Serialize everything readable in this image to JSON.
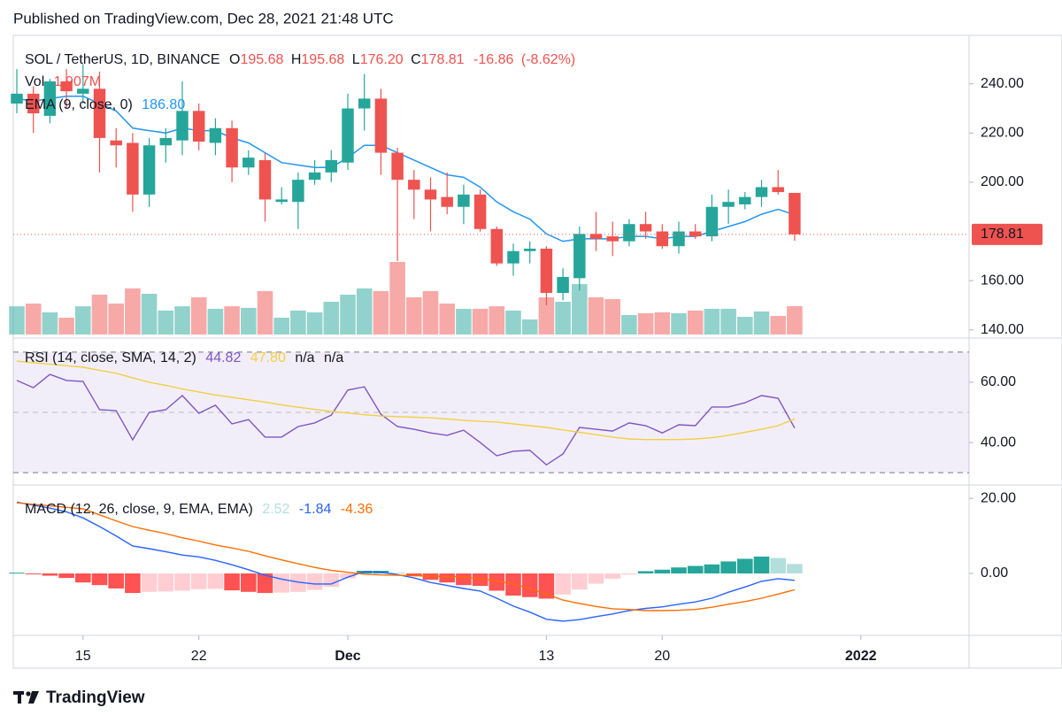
{
  "header": {
    "published": "Published on TradingView.com, Dec 28, 2021 21:48 UTC"
  },
  "footer": {
    "brand": "TradingView"
  },
  "chart_data": [
    {
      "type": "candlestick",
      "title": "SOL / TetherUS, 1D, BINANCE",
      "legend": {
        "open_prefix": "O",
        "high_prefix": "H",
        "low_prefix": "L",
        "close_prefix": "C",
        "low_label": "176.20",
        "change": -16.86,
        "change_pct": {
          "value": -8.62,
          "label": "(-8.62%)"
        }
      },
      "categories": [
        null,
        null,
        null,
        null,
        "15",
        null,
        null,
        null,
        null,
        null,
        null,
        "22",
        null,
        null,
        null,
        null,
        null,
        null,
        null,
        null,
        "Dec",
        null,
        null,
        null,
        null,
        null,
        null,
        null,
        null,
        null,
        null,
        null,
        "13",
        null,
        null,
        null,
        null,
        null,
        null,
        "20",
        null,
        null,
        null,
        null,
        null,
        null,
        null,
        null,
        null,
        null,
        null,
        "2022"
      ],
      "open": [
        232,
        236,
        227,
        241,
        236,
        238,
        217,
        216,
        195,
        215,
        217,
        229,
        216,
        222,
        206,
        209,
        192,
        192,
        201,
        204,
        208,
        230,
        234,
        212,
        201,
        197,
        194,
        190,
        195,
        181,
        167,
        172,
        173,
        155,
        161,
        179,
        178,
        176,
        183,
        180,
        174,
        180,
        178,
        190,
        191,
        194,
        198,
        195.68,
        null,
        null,
        null,
        null
      ],
      "high": [
        246,
        239,
        242,
        246,
        248,
        245,
        222,
        220,
        218,
        222,
        241,
        232,
        226,
        225,
        213,
        212,
        198,
        204,
        209,
        213,
        236,
        244,
        238,
        214,
        205,
        202,
        204,
        199,
        197,
        182,
        175,
        176,
        174,
        165,
        182,
        188,
        184,
        185,
        188,
        183,
        184,
        183,
        195,
        197,
        196,
        201,
        205,
        195.68,
        null,
        null,
        null,
        null
      ],
      "low": [
        228,
        220,
        224,
        230,
        232,
        204,
        206,
        188,
        190,
        208,
        211,
        213,
        211,
        200,
        203,
        184,
        191,
        181,
        199,
        200,
        205,
        221,
        203,
        168,
        185,
        180,
        187,
        183,
        180,
        166,
        162,
        167,
        150,
        152,
        156,
        172,
        170,
        174,
        177,
        173,
        171,
        177,
        176,
        183,
        189,
        190,
        195,
        176.2,
        null,
        null,
        null,
        null
      ],
      "close": [
        236,
        228,
        241,
        237,
        238,
        218,
        215,
        195,
        215,
        218,
        229,
        216.5,
        222,
        206,
        210,
        193,
        193,
        201,
        204,
        209,
        230,
        234,
        212,
        201,
        197,
        193,
        190,
        195,
        181,
        167,
        172,
        173,
        155,
        161.5,
        179,
        177,
        176,
        183,
        180,
        174,
        180,
        178,
        190,
        192,
        194,
        198,
        196,
        178.81,
        null,
        null,
        null,
        null
      ],
      "up_color": "#26a69a",
      "down_color": "#ef5350",
      "volume": {
        "name": "Vol",
        "value_label": "1.907M",
        "values": [
          1.9,
          2.08,
          1.49,
          1.13,
          1.9,
          2.68,
          2.08,
          3.1,
          2.74,
          1.61,
          1.9,
          2.5,
          1.73,
          1.9,
          1.79,
          2.92,
          1.13,
          1.61,
          1.49,
          2.2,
          2.68,
          3.1,
          2.92,
          4.88,
          2.5,
          2.92,
          2.08,
          1.73,
          1.73,
          1.9,
          1.61,
          1.01,
          2.5,
          2.2,
          3.39,
          2.5,
          2.38,
          1.31,
          1.43,
          1.49,
          1.43,
          1.61,
          1.73,
          1.73,
          1.19,
          1.55,
          1.25,
          1.907,
          null,
          null,
          null,
          null
        ]
      },
      "overlays": [
        {
          "name": "EMA (9, close, 0)",
          "color": "#2196f3",
          "value_label": "186.80",
          "values": [
            234,
            233,
            234,
            235,
            235,
            232,
            229,
            222,
            221,
            220,
            222,
            221,
            221,
            218,
            216,
            212,
            208,
            207,
            206,
            206,
            210,
            215,
            215,
            212,
            209,
            206,
            203,
            202,
            198,
            192,
            188,
            185,
            179,
            176,
            177,
            177,
            177,
            178,
            178,
            177,
            178,
            178,
            180,
            182,
            184,
            187,
            189,
            186.8,
            null,
            null,
            null,
            null
          ]
        }
      ],
      "ylim": [
        138.1,
        257.9
      ],
      "yticks": [
        {
          "value": 140,
          "label": "140.00"
        },
        {
          "value": 160,
          "label": "160.00"
        },
        {
          "value": 200,
          "label": "200.00"
        },
        {
          "value": 220,
          "label": "220.00"
        },
        {
          "value": 240,
          "label": "240.00"
        }
      ],
      "grid": false
    },
    {
      "type": "line",
      "title": "RSI (14, close, SMA, 14, 2)",
      "extra_labels": [
        "n/a",
        "n/a"
      ],
      "band": [
        30,
        70
      ],
      "midline": 50,
      "band_color": "#7e57c2",
      "series": [
        {
          "color": "#7e57c2",
          "values": [
            60.6,
            58.2,
            62.6,
            60.6,
            60.3,
            50.9,
            50.6,
            40.9,
            50.0,
            50.9,
            55.6,
            49.7,
            52.4,
            46.2,
            47.6,
            41.8,
            41.8,
            45.3,
            46.5,
            49.1,
            57.4,
            58.5,
            49.4,
            45.3,
            44.4,
            43.2,
            42.4,
            44.1,
            40.0,
            35.6,
            37.1,
            37.4,
            32.6,
            36.2,
            45.0,
            44.4,
            43.8,
            46.5,
            45.6,
            43.2,
            45.9,
            45.6,
            51.8,
            51.8,
            53.2,
            55.6,
            54.7,
            44.82,
            null,
            null,
            null,
            null
          ]
        },
        {
          "color": "#f2cf45",
          "value_label": "47.80",
          "values": [
            67,
            66.5,
            66,
            65.5,
            65,
            64,
            63,
            61.5,
            60,
            59,
            57.8,
            56.8,
            55.8,
            55,
            54.2,
            53.4,
            52.5,
            51.7,
            51,
            50.3,
            49.8,
            49.2,
            48.8,
            48.6,
            48.4,
            48.2,
            47.8,
            47.4,
            47,
            46.8,
            46.2,
            45.6,
            45,
            44.2,
            43.4,
            42.6,
            41.8,
            41.2,
            41,
            41,
            41,
            41.2,
            41.6,
            42.4,
            43.4,
            44.4,
            45.6,
            47.8,
            null,
            null,
            null,
            null
          ]
        }
      ],
      "ylim": [
        26.8,
        73.8
      ],
      "yticks": [
        {
          "value": 40,
          "label": "40.00"
        },
        {
          "value": 60,
          "label": "60.00"
        }
      ],
      "grid": false
    },
    {
      "type": "macd",
      "title": "MACD (12, 26, close, 9, EMA, EMA)",
      "histogram": {
        "colors": {
          "grow_above": "#26a69a",
          "fall_above": "#b2dfdb",
          "grow_below": "#ffcdd2",
          "fall_below": "#ff5252"
        },
        "values": [
          0.2,
          -0.2,
          -0.6,
          -1.2,
          -2.4,
          -3.1,
          -4.0,
          -5.2,
          -4.9,
          -4.8,
          -4.6,
          -4.2,
          -4.1,
          -4.5,
          -4.9,
          -5.2,
          -5.1,
          -4.9,
          -4.4,
          -3.6,
          -1.3,
          0.7,
          0.7,
          0.2,
          -0.6,
          -1.7,
          -2.4,
          -3.1,
          -3.3,
          -4.6,
          -5.9,
          -6.3,
          -6.7,
          -5.6,
          -4.3,
          -2.7,
          -1.4,
          -0.3,
          0.6,
          1.0,
          1.6,
          2.0,
          2.4,
          3.2,
          3.9,
          4.5,
          4.1,
          2.52,
          null,
          null,
          null,
          null
        ]
      },
      "series": [
        {
          "color": "#2962ff",
          "values": [
            19.0,
            18.2,
            17.4,
            16.4,
            14.8,
            12.5,
            10.0,
            7.3,
            6.6,
            5.8,
            4.9,
            4.4,
            3.5,
            2.3,
            1.0,
            -0.5,
            -1.5,
            -2.3,
            -2.8,
            -2.8,
            -1.0,
            0.5,
            0.3,
            -0.3,
            -1.2,
            -2.4,
            -3.2,
            -4.0,
            -4.7,
            -6.6,
            -8.7,
            -10.3,
            -12.2,
            -12.7,
            -12.3,
            -11.5,
            -10.8,
            -9.9,
            -9.3,
            -8.9,
            -8.2,
            -7.6,
            -6.6,
            -5.0,
            -3.6,
            -2.1,
            -1.4,
            -1.84,
            null,
            null,
            null,
            null
          ]
        },
        {
          "color": "#ff6d00",
          "values": [
            18.8,
            18.4,
            18.0,
            17.6,
            17.2,
            15.6,
            14.0,
            12.5,
            11.5,
            10.6,
            9.5,
            8.6,
            7.6,
            6.8,
            5.9,
            4.7,
            3.6,
            2.6,
            1.6,
            0.8,
            0.3,
            -0.2,
            -0.4,
            -0.5,
            -0.6,
            -0.7,
            -0.8,
            -0.9,
            -1.4,
            -2.0,
            -2.8,
            -4.0,
            -5.5,
            -7.1,
            -8.0,
            -8.8,
            -9.4,
            -9.6,
            -9.9,
            -9.9,
            -9.8,
            -9.6,
            -9.0,
            -8.2,
            -7.5,
            -6.6,
            -5.5,
            -4.36,
            null,
            null,
            null,
            null
          ]
        }
      ],
      "ylim": [
        -16.5,
        23.1
      ],
      "yticks": [
        {
          "value": 0,
          "label": "0.00"
        },
        {
          "value": 20,
          "label": "20.00"
        }
      ],
      "grid": false
    }
  ]
}
